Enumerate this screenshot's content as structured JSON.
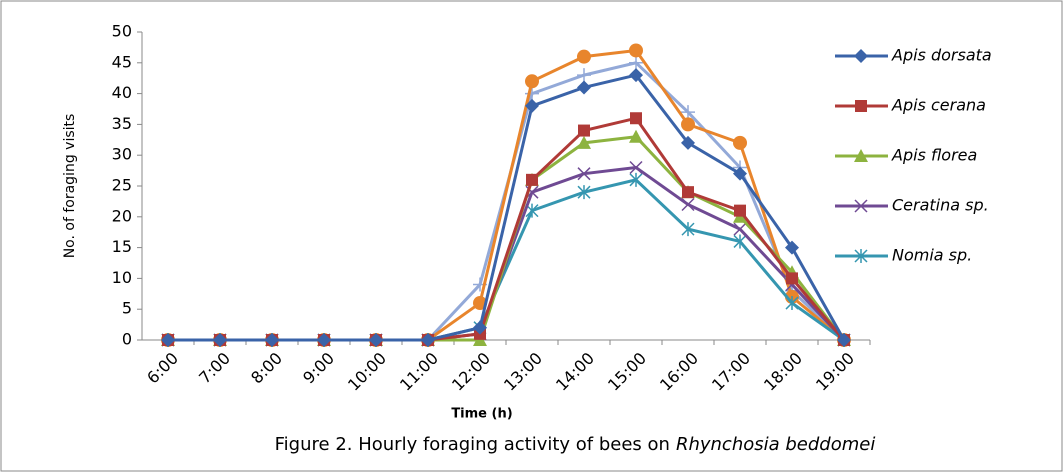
{
  "chart_data": {
    "type": "line",
    "caption_prefix": "Figure 2. Hourly foraging activity of bees on",
    "caption_species": "Rhynchosia beddomei",
    "xlabel": "Time (h)",
    "ylabel": "No. of foraging visits",
    "categories": [
      "6:00",
      "7:00",
      "8:00",
      "9:00",
      "10:00",
      "11:00",
      "12:00",
      "13:00",
      "14:00",
      "15:00",
      "16:00",
      "17:00",
      "18:00",
      "19:00"
    ],
    "ylim": [
      0,
      50
    ],
    "yticks": [
      0,
      5,
      10,
      15,
      20,
      25,
      30,
      35,
      40,
      45,
      50
    ],
    "series": [
      {
        "name": "Apis dorsata",
        "color": "#3a63a8",
        "marker": "diamond",
        "values": [
          0,
          0,
          0,
          0,
          0,
          0,
          2,
          38,
          41,
          43,
          32,
          27,
          15,
          0
        ]
      },
      {
        "name": "Apis cerana",
        "color": "#b03a37",
        "marker": "square",
        "values": [
          0,
          0,
          0,
          0,
          0,
          0,
          1,
          26,
          34,
          36,
          24,
          21,
          10,
          0
        ]
      },
      {
        "name": "Apis florea",
        "color": "#8db33f",
        "marker": "triangle",
        "values": [
          0,
          0,
          0,
          0,
          0,
          0,
          0,
          26,
          32,
          33,
          24,
          20,
          11,
          0
        ]
      },
      {
        "name": "Ceratina sp.",
        "color": "#6f4a93",
        "marker": "x",
        "values": [
          0,
          0,
          0,
          0,
          0,
          0,
          1,
          24,
          27,
          28,
          22,
          18,
          9,
          0
        ]
      },
      {
        "name": "Nomia sp.",
        "color": "#3596b0",
        "marker": "star",
        "values": [
          0,
          0,
          0,
          0,
          0,
          0,
          2,
          21,
          24,
          26,
          18,
          16,
          6,
          0
        ]
      },
      {
        "color": "#e8852c",
        "marker": "circle",
        "values": [
          0,
          0,
          0,
          0,
          0,
          0,
          6,
          42,
          46,
          47,
          35,
          32,
          7,
          0
        ]
      },
      {
        "color": "#93a9d8",
        "marker": "plus",
        "values": [
          0,
          0,
          0,
          0,
          0,
          0,
          9,
          40,
          43,
          45,
          37,
          28,
          8,
          0
        ]
      }
    ]
  }
}
